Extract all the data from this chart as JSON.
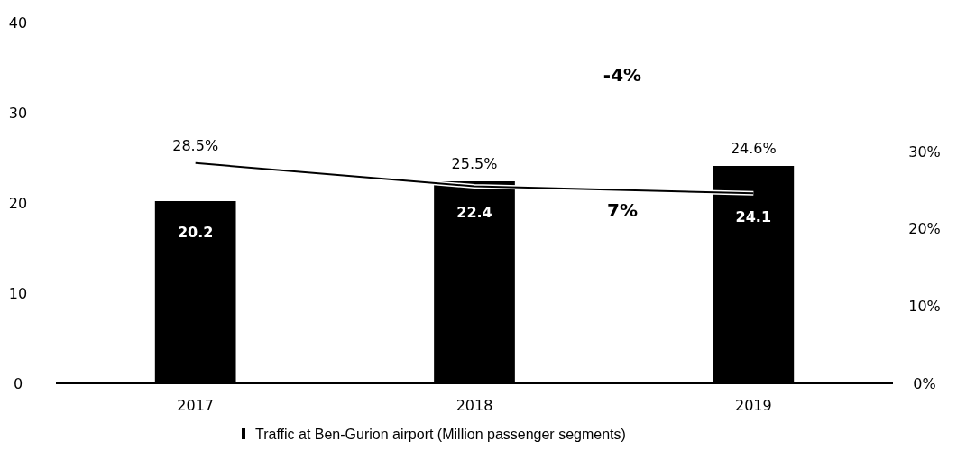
{
  "chart_data": {
    "type": "bar",
    "categories": [
      "2017",
      "2018",
      "2019"
    ],
    "series": [
      {
        "name": "Traffic at Ben-Gurion airport (Million passenger segments)",
        "color": "#000000",
        "values": [
          20.2,
          22.4,
          24.1
        ],
        "value_labels": [
          "20.2",
          "22.4",
          "24.1"
        ]
      },
      {
        "type": "line",
        "axis": "y2",
        "color": "#000000",
        "values": [
          28.5,
          25.5,
          24.6
        ],
        "value_labels": [
          "28.5%",
          "25.5%",
          "24.6%"
        ]
      }
    ],
    "ylim": [
      0,
      40
    ],
    "yticks": [
      0,
      10,
      20,
      30,
      40
    ],
    "y2lim": [
      0,
      30
    ],
    "y2ticks": [
      {
        "value": 0,
        "label": "0%"
      },
      {
        "value": 10,
        "label": "10%"
      },
      {
        "value": 20,
        "label": "20%"
      },
      {
        "value": 30,
        "label": "30%"
      }
    ],
    "annotations": [
      "-4%",
      "7%"
    ],
    "grid": false,
    "legend": "bottom",
    "marker": "none",
    "line_style": "solid"
  }
}
